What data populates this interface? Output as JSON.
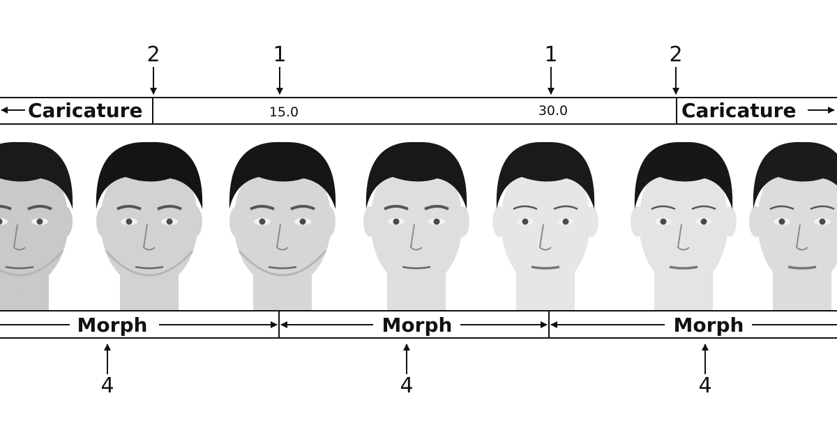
{
  "top_band": {
    "left_label": "Caricature",
    "right_label": "Caricature",
    "values": [
      "15.0",
      "30.0"
    ]
  },
  "top_markers": [
    "2",
    "1",
    "1",
    "2"
  ],
  "bottom_band": {
    "labels": [
      "Morph",
      "Morph",
      "Morph"
    ]
  },
  "bottom_markers": [
    "4",
    "4",
    "4"
  ],
  "faces": [
    {
      "gender": "male",
      "hair": "#1a1a1a",
      "skin": "#c9c9c9"
    },
    {
      "gender": "male",
      "hair": "#141414",
      "skin": "#d2d2d2"
    },
    {
      "gender": "male",
      "hair": "#161616",
      "skin": "#d6d6d6"
    },
    {
      "gender": "neutral",
      "hair": "#181818",
      "skin": "#dedede"
    },
    {
      "gender": "female",
      "hair": "#1a1a1a",
      "skin": "#e6e6e6"
    },
    {
      "gender": "female",
      "hair": "#171717",
      "skin": "#e4e4e4"
    },
    {
      "gender": "female",
      "hair": "#1b1b1b",
      "skin": "#dcdcdc"
    }
  ]
}
